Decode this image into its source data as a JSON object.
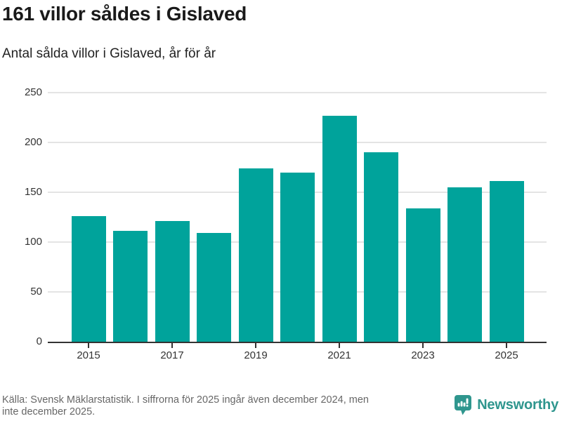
{
  "header": {
    "title": "161 villor såldes i Gislaved",
    "subtitle": "Antal sålda villor i Gislaved, år för år"
  },
  "chart_data": {
    "type": "bar",
    "title": "161 villor såldes i Gislaved",
    "subtitle": "Antal sålda villor i Gislaved, år för år",
    "categories": [
      "2015",
      "2016",
      "2017",
      "2018",
      "2019",
      "2020",
      "2021",
      "2022",
      "2023",
      "2024",
      "2025"
    ],
    "values": [
      126,
      111,
      121,
      109,
      174,
      170,
      227,
      190,
      134,
      155,
      161
    ],
    "xlabel": "",
    "ylabel": "",
    "ylim": [
      0,
      250
    ],
    "y_ticks": [
      0,
      50,
      100,
      150,
      200,
      250
    ],
    "x_tick_labels": [
      "2015",
      "2017",
      "2019",
      "2021",
      "2023",
      "2025"
    ],
    "grid": true,
    "legend": "none",
    "bar_color": "#00a39b"
  },
  "footer": {
    "source_lines": [
      "Källa: Svensk Mäklarstatistik. I siffrorna för 2025 ingår även december 2024, men",
      "inte december 2025."
    ],
    "logo_text": "Newsworthy"
  },
  "colors": {
    "bar": "#00a39b",
    "logo": "#2f968e",
    "axis": "#333333",
    "gridline": "#e4e4e4",
    "title_text": "#1a1a1a",
    "source_text": "#676767"
  }
}
